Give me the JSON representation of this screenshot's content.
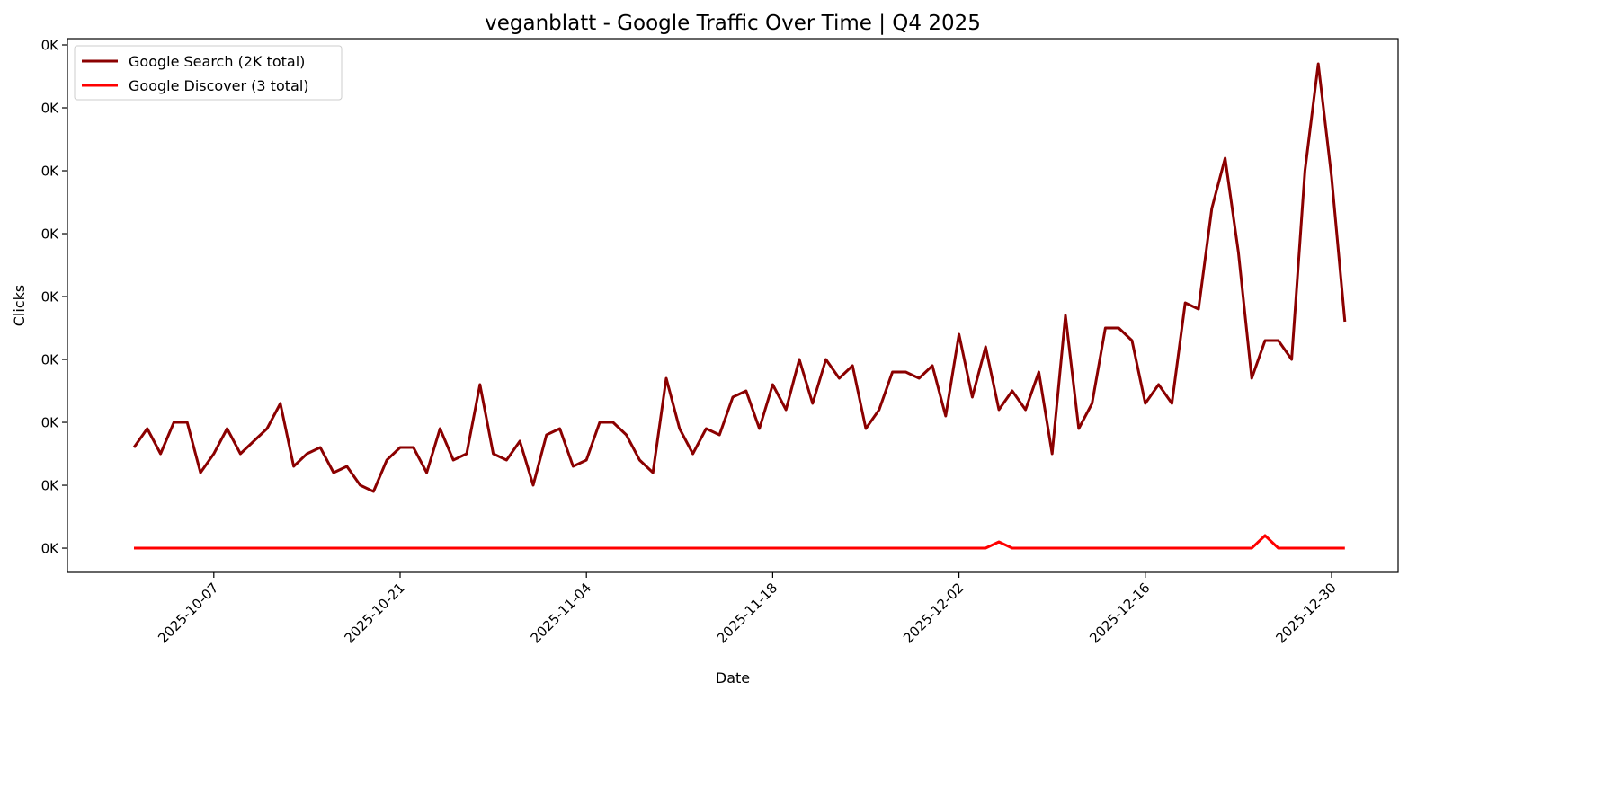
{
  "chart_data": {
    "type": "line",
    "title": "veganblatt - Google Traffic Over Time | Q4 2025",
    "xlabel": "Date",
    "ylabel": "Clicks",
    "x_start": "2025-10-01",
    "x_end": "2025-12-31",
    "x_step": "1 day",
    "xlim": [
      "2025-09-26",
      "2026-01-04"
    ],
    "ylim": [
      -3.85,
      81
    ],
    "x_ticks": [
      "2025-10-07",
      "2025-10-21",
      "2025-11-04",
      "2025-11-18",
      "2025-12-02",
      "2025-12-16",
      "2025-12-30"
    ],
    "y_ticks": [
      0,
      10,
      20,
      30,
      40,
      50,
      60,
      70,
      80
    ],
    "y_tick_labels": [
      "0K",
      "0K",
      "0K",
      "0K",
      "0K",
      "0K",
      "0K",
      "0K",
      "0K"
    ],
    "grid": false,
    "legend_position": "top-left",
    "series": [
      {
        "name": "Google Search (2K total)",
        "color": "#8b0000",
        "values": [
          16,
          19,
          15,
          20,
          20,
          12,
          15,
          19,
          15,
          17,
          19,
          23,
          13,
          15,
          16,
          12,
          13,
          10,
          9,
          14,
          16,
          16,
          12,
          19,
          14,
          15,
          26,
          15,
          14,
          17,
          10,
          18,
          19,
          13,
          14,
          20,
          20,
          18,
          14,
          12,
          27,
          19,
          15,
          19,
          18,
          24,
          25,
          19,
          26,
          22,
          30,
          23,
          30,
          27,
          29,
          19,
          22,
          28,
          28,
          27,
          29,
          21,
          34,
          24,
          32,
          22,
          25,
          22,
          28,
          15,
          37,
          19,
          23,
          35,
          35,
          33,
          23,
          26,
          23,
          39,
          38,
          54,
          62,
          47,
          27,
          33,
          33,
          30,
          60,
          77,
          59,
          36
        ]
      },
      {
        "name": "Google Discover (3 total)",
        "color": "#ff0000",
        "values": [
          0,
          0,
          0,
          0,
          0,
          0,
          0,
          0,
          0,
          0,
          0,
          0,
          0,
          0,
          0,
          0,
          0,
          0,
          0,
          0,
          0,
          0,
          0,
          0,
          0,
          0,
          0,
          0,
          0,
          0,
          0,
          0,
          0,
          0,
          0,
          0,
          0,
          0,
          0,
          0,
          0,
          0,
          0,
          0,
          0,
          0,
          0,
          0,
          0,
          0,
          0,
          0,
          0,
          0,
          0,
          0,
          0,
          0,
          0,
          0,
          0,
          0,
          0,
          0,
          0,
          1,
          0,
          0,
          0,
          0,
          0,
          0,
          0,
          0,
          0,
          0,
          0,
          0,
          0,
          0,
          0,
          0,
          0,
          0,
          0,
          2,
          0,
          0,
          0,
          0,
          0,
          0
        ]
      }
    ]
  }
}
